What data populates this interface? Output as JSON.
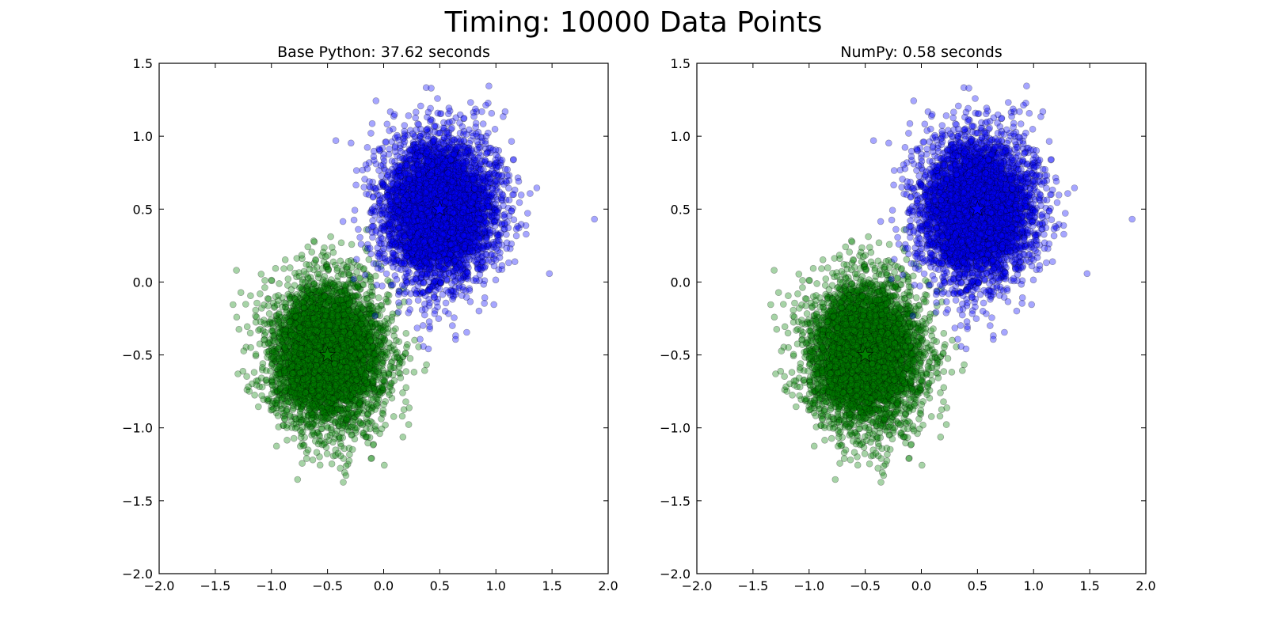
{
  "figure": {
    "suptitle": "Timing: 10000 Data Points"
  },
  "chart_data": [
    {
      "type": "scatter",
      "title": "Base Python: 37.62 seconds",
      "xlabel": "",
      "ylabel": "",
      "xlim": [
        -2.0,
        2.0
      ],
      "ylim": [
        -2.0,
        1.5
      ],
      "xticks": [
        "−2.0",
        "−1.5",
        "−1.0",
        "−0.5",
        "0.0",
        "0.5",
        "1.0",
        "1.5",
        "2.0"
      ],
      "yticks": [
        "1.5",
        "1.0",
        "0.5",
        "0.0",
        "−0.5",
        "−1.0",
        "−1.5",
        "−2.0"
      ],
      "grid": false,
      "series": [
        {
          "color": "#0000ff",
          "points": 5000,
          "center": [
            0.5,
            0.5
          ],
          "spread": 0.25,
          "marker": "circle",
          "alpha": 0.35
        },
        {
          "color": "#008000",
          "points": 5000,
          "center": [
            -0.5,
            -0.5
          ],
          "spread": 0.25,
          "marker": "circle",
          "alpha": 0.35
        }
      ],
      "centroids": [
        {
          "x": 0.5,
          "y": 0.5,
          "color": "#0000ff",
          "marker": "star"
        },
        {
          "x": -0.5,
          "y": -0.5,
          "color": "#008000",
          "marker": "star"
        }
      ]
    },
    {
      "type": "scatter",
      "title": "NumPy: 0.58 seconds",
      "xlabel": "",
      "ylabel": "",
      "xlim": [
        -2.0,
        2.0
      ],
      "ylim": [
        -2.0,
        1.5
      ],
      "xticks": [
        "−2.0",
        "−1.5",
        "−1.0",
        "−0.5",
        "0.0",
        "0.5",
        "1.0",
        "1.5",
        "2.0"
      ],
      "yticks": [
        "1.5",
        "1.0",
        "0.5",
        "0.0",
        "−0.5",
        "−1.0",
        "−1.5",
        "−2.0"
      ],
      "grid": false,
      "series": [
        {
          "color": "#0000ff",
          "points": 5000,
          "center": [
            0.5,
            0.5
          ],
          "spread": 0.25,
          "marker": "circle",
          "alpha": 0.35
        },
        {
          "color": "#008000",
          "points": 5000,
          "center": [
            -0.5,
            -0.5
          ],
          "spread": 0.25,
          "marker": "circle",
          "alpha": 0.35
        }
      ],
      "centroids": [
        {
          "x": 0.5,
          "y": 0.5,
          "color": "#0000ff",
          "marker": "star"
        },
        {
          "x": -0.5,
          "y": -0.5,
          "color": "#008000",
          "marker": "star"
        }
      ]
    }
  ]
}
